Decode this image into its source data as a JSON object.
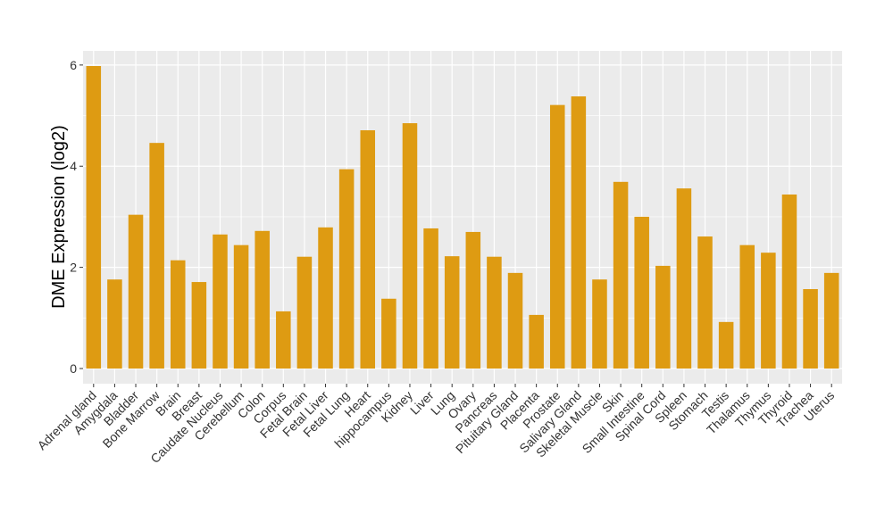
{
  "chart_data": {
    "type": "bar",
    "title": "",
    "xlabel": "",
    "ylabel": "DME Expression (log2)",
    "ylim": [
      -0.3,
      6.28
    ],
    "yticks": [
      0,
      2,
      4,
      6
    ],
    "grid": true,
    "bar_color": "#DE9B12",
    "panel_color": "#EBEBEB",
    "categories": [
      "Adrenal gland",
      "Amygdala",
      "Bladder",
      "Bone Marrow",
      "Brain",
      "Breast",
      "Caudate Nucleus",
      "Cerebellum",
      "Colon",
      "Corpus",
      "Fetal Brain",
      "Fetal Liver",
      "Fetal Lung",
      "Heart",
      "hippocampus",
      "Kidney",
      "Liver",
      "Lung",
      "Ovary",
      "Pancreas",
      "Pituitary Gland",
      "Placenta",
      "Prostate",
      "Salivary Gland",
      "Skeletal Muscle",
      "Skin",
      "Small Intestine",
      "Spinal Cord",
      "Spleen",
      "Stomach",
      "Testis",
      "Thalamus",
      "Thymus",
      "Thyroid",
      "Trachea",
      "Uterus"
    ],
    "values": [
      5.98,
      1.76,
      3.04,
      4.46,
      2.14,
      1.71,
      2.65,
      2.44,
      2.72,
      1.13,
      2.21,
      2.79,
      3.94,
      4.71,
      1.38,
      4.85,
      2.77,
      2.22,
      2.7,
      2.21,
      1.89,
      1.06,
      5.21,
      5.38,
      1.76,
      3.69,
      3.0,
      2.03,
      3.56,
      2.61,
      0.92,
      2.44,
      2.29,
      3.44,
      1.57,
      1.89
    ]
  }
}
